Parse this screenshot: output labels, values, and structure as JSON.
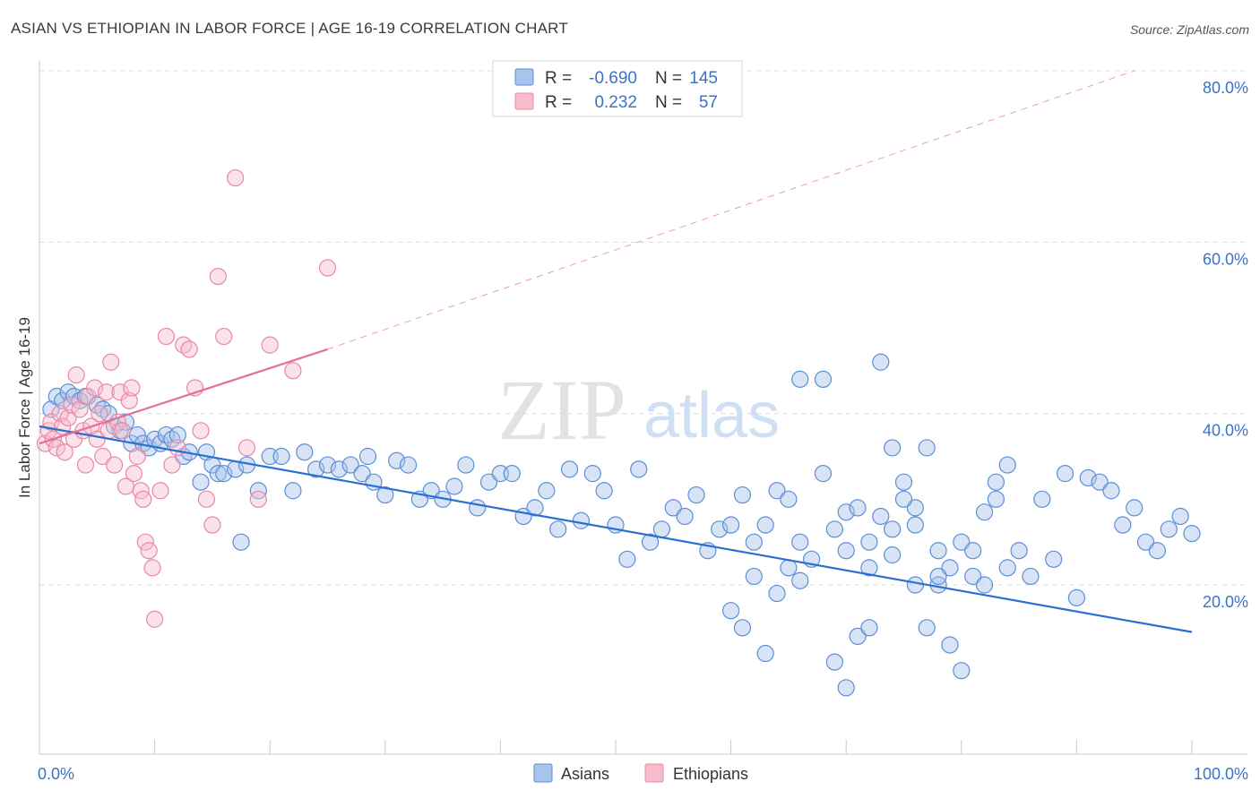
{
  "title": "ASIAN VS ETHIOPIAN IN LABOR FORCE | AGE 16-19 CORRELATION CHART",
  "source": "Source: ZipAtlas.com",
  "watermark": {
    "zip": "ZIP",
    "atlas": "atlas"
  },
  "colors": {
    "asian_fill": "#a9c4ea",
    "asian_stroke": "#5b8fd6",
    "asian_line": "#2a6fd1",
    "ethiopian_fill": "#f6bccb",
    "ethiopian_stroke": "#e888a6",
    "ethiopian_line": "#e46f98",
    "tick_text": "#3b72c9",
    "grid": "#dcdcdc"
  },
  "stats": {
    "r_label": "R =",
    "n_label": "N =",
    "rows": [
      {
        "series": "Asians",
        "r": "-0.690",
        "n": "145"
      },
      {
        "series": "Ethiopians",
        "r": "0.232",
        "n": "57"
      }
    ]
  },
  "chart_data": {
    "type": "scatter",
    "xlabel": "",
    "ylabel": "In Labor Force | Age 16-19",
    "xlim": [
      0,
      100
    ],
    "ylim": [
      0,
      82
    ],
    "x_ticks": [
      "0.0%",
      "100.0%"
    ],
    "y_ticks": [
      {
        "value": 20,
        "label": "20.0%"
      },
      {
        "value": 40,
        "label": "40.0%"
      },
      {
        "value": 60,
        "label": "60.0%"
      },
      {
        "value": 80,
        "label": "80.0%"
      }
    ],
    "legend": [
      "Asians",
      "Ethiopians"
    ],
    "series": [
      {
        "name": "Asians",
        "trend": {
          "x1": 0,
          "y1": 38.5,
          "x2": 100,
          "y2": 14.5
        },
        "points": [
          [
            1,
            40.5
          ],
          [
            1.5,
            42
          ],
          [
            2,
            41.5
          ],
          [
            2.5,
            42.5
          ],
          [
            3,
            42
          ],
          [
            3.5,
            41.5
          ],
          [
            4,
            42
          ],
          [
            5,
            41
          ],
          [
            5.5,
            40.5
          ],
          [
            6,
            40
          ],
          [
            6.5,
            38.5
          ],
          [
            7,
            38
          ],
          [
            7.5,
            39
          ],
          [
            8,
            36.5
          ],
          [
            8.5,
            37.5
          ],
          [
            9,
            36.5
          ],
          [
            9.5,
            36
          ],
          [
            10,
            37
          ],
          [
            10.5,
            36.5
          ],
          [
            11,
            37.5
          ],
          [
            11.5,
            37
          ],
          [
            12,
            37.5
          ],
          [
            12.5,
            35
          ],
          [
            13,
            35.5
          ],
          [
            14,
            32
          ],
          [
            14.5,
            35.5
          ],
          [
            15,
            34
          ],
          [
            15.5,
            33
          ],
          [
            16,
            33
          ],
          [
            17,
            33.5
          ],
          [
            17.5,
            25
          ],
          [
            18,
            34
          ],
          [
            19,
            31
          ],
          [
            20,
            35
          ],
          [
            21,
            35
          ],
          [
            22,
            31
          ],
          [
            23,
            35.5
          ],
          [
            24,
            33.5
          ],
          [
            25,
            34
          ],
          [
            26,
            33.5
          ],
          [
            27,
            34
          ],
          [
            28,
            33
          ],
          [
            28.5,
            35
          ],
          [
            29,
            32
          ],
          [
            30,
            30.5
          ],
          [
            31,
            34.5
          ],
          [
            32,
            34
          ],
          [
            33,
            30
          ],
          [
            34,
            31
          ],
          [
            35,
            30
          ],
          [
            36,
            31.5
          ],
          [
            37,
            34
          ],
          [
            38,
            29
          ],
          [
            39,
            32
          ],
          [
            40,
            33
          ],
          [
            41,
            33
          ],
          [
            42,
            28
          ],
          [
            43,
            29
          ],
          [
            44,
            31
          ],
          [
            45,
            26.5
          ],
          [
            46,
            33.5
          ],
          [
            47,
            27.5
          ],
          [
            48,
            33
          ],
          [
            49,
            31
          ],
          [
            50,
            27
          ],
          [
            51,
            23
          ],
          [
            52,
            33.5
          ],
          [
            53,
            25
          ],
          [
            54,
            26.5
          ],
          [
            55,
            29
          ],
          [
            56,
            28
          ],
          [
            57,
            30.5
          ],
          [
            58,
            24
          ],
          [
            59,
            26.5
          ],
          [
            60,
            27
          ],
          [
            61,
            30.5
          ],
          [
            62,
            25
          ],
          [
            63,
            27
          ],
          [
            64,
            31
          ],
          [
            65,
            30
          ],
          [
            66,
            25
          ],
          [
            67,
            23
          ],
          [
            68,
            33
          ],
          [
            69,
            26.5
          ],
          [
            70,
            28.5
          ],
          [
            71,
            29
          ],
          [
            72,
            22
          ],
          [
            73,
            28
          ],
          [
            74,
            26.5
          ],
          [
            75,
            32
          ],
          [
            76,
            29
          ],
          [
            77,
            36
          ],
          [
            78,
            20
          ],
          [
            79,
            22
          ],
          [
            80,
            25
          ],
          [
            81,
            24
          ],
          [
            82,
            28.5
          ],
          [
            83,
            32
          ],
          [
            84,
            34
          ],
          [
            85,
            24
          ],
          [
            86,
            21
          ],
          [
            87,
            30
          ],
          [
            88,
            23
          ],
          [
            89,
            33
          ],
          [
            90,
            18.5
          ],
          [
            91,
            32.5
          ],
          [
            92,
            32
          ],
          [
            93,
            31
          ],
          [
            94,
            27
          ],
          [
            95,
            29
          ],
          [
            96,
            25
          ],
          [
            97,
            24
          ],
          [
            98,
            26.5
          ],
          [
            99,
            28
          ],
          [
            100,
            26
          ],
          [
            66,
            44
          ],
          [
            68,
            44
          ],
          [
            71,
            14
          ],
          [
            73,
            46
          ],
          [
            74,
            36
          ],
          [
            60,
            17
          ],
          [
            61,
            15
          ],
          [
            62,
            21
          ],
          [
            63,
            12
          ],
          [
            64,
            19
          ],
          [
            65,
            22
          ],
          [
            66,
            20.5
          ],
          [
            69,
            11
          ],
          [
            70,
            8
          ],
          [
            72,
            15
          ],
          [
            75,
            30
          ],
          [
            76,
            27
          ],
          [
            77,
            15
          ],
          [
            78,
            24
          ],
          [
            79,
            13
          ],
          [
            80,
            10
          ],
          [
            81,
            21
          ],
          [
            82,
            20
          ],
          [
            83,
            30
          ],
          [
            84,
            22
          ],
          [
            70,
            24
          ],
          [
            72,
            25
          ],
          [
            74,
            23.5
          ],
          [
            76,
            20
          ],
          [
            78,
            21
          ]
        ]
      },
      {
        "name": "Ethiopians",
        "trend": {
          "x1": 0,
          "y1": 36.5,
          "x2": 25,
          "y2": 47.5,
          "dash_x2": 95,
          "dash_y2": 80
        },
        "points": [
          [
            0.5,
            36.5
          ],
          [
            0.8,
            38
          ],
          [
            1,
            39
          ],
          [
            1.2,
            37
          ],
          [
            1.5,
            36
          ],
          [
            1.8,
            40
          ],
          [
            2,
            38.5
          ],
          [
            2.2,
            35.5
          ],
          [
            2.5,
            39.5
          ],
          [
            2.8,
            41
          ],
          [
            3,
            37
          ],
          [
            3.2,
            44.5
          ],
          [
            3.5,
            40.5
          ],
          [
            3.8,
            38
          ],
          [
            4,
            34
          ],
          [
            4.2,
            42
          ],
          [
            4.5,
            38.5
          ],
          [
            4.8,
            43
          ],
          [
            5,
            37
          ],
          [
            5.2,
            40
          ],
          [
            5.5,
            35
          ],
          [
            5.8,
            42.5
          ],
          [
            6,
            38
          ],
          [
            6.2,
            46
          ],
          [
            6.5,
            34
          ],
          [
            6.8,
            39
          ],
          [
            7,
            42.5
          ],
          [
            7.2,
            38
          ],
          [
            7.5,
            31.5
          ],
          [
            7.8,
            41.5
          ],
          [
            8,
            43
          ],
          [
            8.2,
            33
          ],
          [
            8.5,
            35
          ],
          [
            8.8,
            31
          ],
          [
            9,
            30
          ],
          [
            9.2,
            25
          ],
          [
            9.5,
            24
          ],
          [
            9.8,
            22
          ],
          [
            10,
            16
          ],
          [
            10.5,
            31
          ],
          [
            11,
            49
          ],
          [
            11.5,
            34
          ],
          [
            12,
            36
          ],
          [
            12.5,
            48
          ],
          [
            13,
            47.5
          ],
          [
            13.5,
            43
          ],
          [
            14,
            38
          ],
          [
            14.5,
            30
          ],
          [
            15,
            27
          ],
          [
            15.5,
            56
          ],
          [
            16,
            49
          ],
          [
            17,
            67.5
          ],
          [
            18,
            36
          ],
          [
            19,
            30
          ],
          [
            20,
            48
          ],
          [
            22,
            45
          ],
          [
            25,
            57
          ]
        ]
      }
    ]
  }
}
